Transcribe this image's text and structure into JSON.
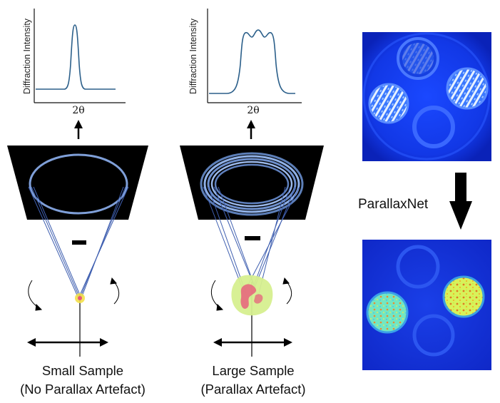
{
  "panels": {
    "small": {
      "y_axis_label": "Diffraction Intensity",
      "x_axis_label": "2θ",
      "caption_line1": "Small Sample",
      "caption_line2": "(No Parallax Artefact)"
    },
    "large": {
      "y_axis_label": "Diffraction Intensity",
      "x_axis_label": "2θ",
      "caption_line1": "Large Sample",
      "caption_line2": "(Parallax Artefact)"
    }
  },
  "network_label": "ParallaxNet",
  "colors": {
    "curve": "#2b5f8a",
    "axis": "#111111",
    "detector": "#000000",
    "ring": "#7f9fd8",
    "beam": "#3f5fb0",
    "sample_small": "#f3e04a",
    "sample_large": "#d6ef8f",
    "sample_core": "#e8577a",
    "recon_bg": "#1530e0"
  },
  "icons": {
    "up_arrow": "arrow-up-icon",
    "down_arrow": "arrow-down-icon",
    "rotation": "rotation-arrow-icon",
    "translation": "double-headed-arrow-icon"
  }
}
